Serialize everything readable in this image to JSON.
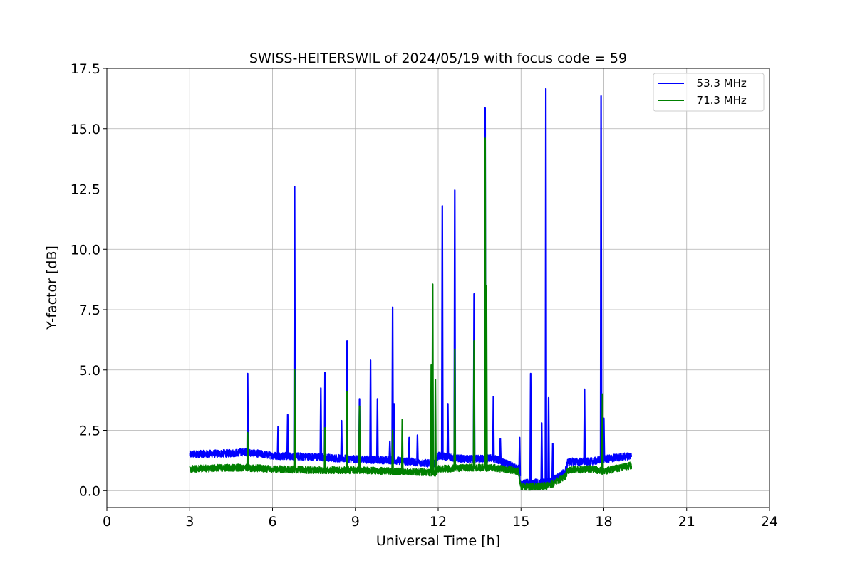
{
  "chart_data": {
    "type": "line",
    "title": "SWISS-HEITERSWIL of 2024/05/19 with focus code = 59",
    "xlabel": "Universal Time [h]",
    "ylabel": "Y-factor [dB]",
    "xlim": [
      0,
      24
    ],
    "ylim": [
      -0.7,
      17.5
    ],
    "xticks": [
      0,
      3,
      6,
      9,
      12,
      15,
      18,
      21,
      24
    ],
    "xtick_labels": [
      "0",
      "3",
      "6",
      "9",
      "12",
      "15",
      "18",
      "21",
      "24"
    ],
    "yticks": [
      0.0,
      2.5,
      5.0,
      7.5,
      10.0,
      12.5,
      15.0,
      17.5
    ],
    "ytick_labels": [
      "0.0",
      "2.5",
      "5.0",
      "7.5",
      "10.0",
      "12.5",
      "15.0",
      "17.5"
    ],
    "grid": true,
    "legend_position": "top-right",
    "series": [
      {
        "name": "  53.3 MHz",
        "color": "#0000ff",
        "baseline": [
          [
            3.0,
            1.5
          ],
          [
            4.5,
            1.55
          ],
          [
            5.0,
            1.6
          ],
          [
            6.0,
            1.45
          ],
          [
            7.5,
            1.4
          ],
          [
            9.0,
            1.3
          ],
          [
            10.5,
            1.25
          ],
          [
            11.9,
            1.1
          ],
          [
            12.0,
            1.45
          ],
          [
            13.0,
            1.3
          ],
          [
            14.0,
            1.35
          ],
          [
            14.9,
            0.9
          ],
          [
            15.0,
            0.3
          ],
          [
            16.0,
            0.35
          ],
          [
            16.4,
            0.6
          ],
          [
            16.6,
            0.8
          ],
          [
            16.7,
            1.2
          ],
          [
            17.5,
            1.2
          ],
          [
            18.0,
            1.3
          ],
          [
            19.0,
            1.45
          ]
        ],
        "peaks": [
          [
            5.1,
            4.85
          ],
          [
            6.2,
            2.65
          ],
          [
            6.55,
            3.15
          ],
          [
            6.8,
            12.6
          ],
          [
            7.75,
            4.25
          ],
          [
            7.9,
            4.9
          ],
          [
            8.5,
            2.9
          ],
          [
            8.7,
            6.2
          ],
          [
            9.15,
            3.8
          ],
          [
            9.55,
            5.4
          ],
          [
            9.8,
            3.8
          ],
          [
            10.25,
            2.05
          ],
          [
            10.35,
            7.6
          ],
          [
            10.4,
            3.6
          ],
          [
            10.95,
            2.2
          ],
          [
            11.25,
            2.3
          ],
          [
            11.8,
            5.1
          ],
          [
            12.15,
            11.8
          ],
          [
            12.35,
            3.6
          ],
          [
            12.6,
            12.45
          ],
          [
            13.3,
            8.15
          ],
          [
            13.7,
            15.85
          ],
          [
            14.0,
            3.9
          ],
          [
            14.25,
            2.15
          ],
          [
            14.95,
            2.2
          ],
          [
            15.35,
            4.85
          ],
          [
            15.75,
            2.8
          ],
          [
            15.9,
            16.65
          ],
          [
            16.0,
            3.85
          ],
          [
            16.15,
            1.95
          ],
          [
            17.3,
            4.2
          ],
          [
            17.9,
            16.35
          ],
          [
            18.0,
            3.0
          ]
        ]
      },
      {
        "name": "  71.3 MHz",
        "color": "#008000",
        "baseline": [
          [
            3.0,
            0.9
          ],
          [
            4.5,
            0.95
          ],
          [
            5.0,
            0.95
          ],
          [
            6.0,
            0.9
          ],
          [
            7.5,
            0.85
          ],
          [
            9.0,
            0.85
          ],
          [
            10.5,
            0.8
          ],
          [
            11.9,
            0.75
          ],
          [
            12.0,
            0.9
          ],
          [
            13.0,
            0.95
          ],
          [
            14.0,
            0.95
          ],
          [
            14.9,
            0.8
          ],
          [
            15.0,
            0.15
          ],
          [
            16.0,
            0.2
          ],
          [
            16.4,
            0.45
          ],
          [
            16.6,
            0.6
          ],
          [
            16.7,
            0.85
          ],
          [
            17.5,
            0.9
          ],
          [
            18.0,
            0.8
          ],
          [
            19.0,
            1.05
          ]
        ],
        "peaks": [
          [
            5.1,
            2.4
          ],
          [
            6.8,
            5.0
          ],
          [
            7.9,
            2.6
          ],
          [
            8.7,
            4.1
          ],
          [
            9.15,
            3.5
          ],
          [
            10.35,
            2.5
          ],
          [
            10.7,
            2.95
          ],
          [
            11.75,
            5.2
          ],
          [
            11.8,
            8.55
          ],
          [
            11.9,
            4.6
          ],
          [
            12.6,
            5.85
          ],
          [
            13.3,
            6.2
          ],
          [
            13.7,
            14.6
          ],
          [
            13.75,
            8.5
          ],
          [
            17.95,
            4.0
          ]
        ]
      }
    ]
  }
}
